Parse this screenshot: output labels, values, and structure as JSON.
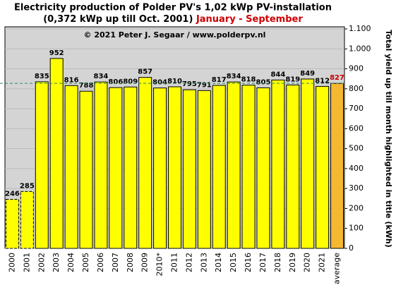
{
  "chart_data": {
    "type": "bar",
    "title": "Electricity production  of Polder PV's 1,02 kWp PV-installation",
    "title_line2": "(0,372 kWp up till Oct. 2001)",
    "title_highlight": "January - September",
    "subtitle": "© 2021 Peter J. Segaar / www.polderpv.nl",
    "y_axis_label": "Total yield up till month highlighted in title (kWh)",
    "categories": [
      "2000",
      "2001",
      "2002",
      "2003",
      "2004",
      "2005",
      "2006",
      "2007",
      "2008",
      "2009",
      "2010*",
      "2011",
      "2012",
      "2013",
      "2014",
      "2015",
      "2016",
      "2017",
      "2018",
      "2019",
      "2020",
      "2021",
      "average"
    ],
    "values": [
      246,
      285,
      835,
      952,
      816,
      788,
      834,
      806,
      809,
      857,
      804,
      810,
      795,
      791,
      817,
      834,
      818,
      805,
      844,
      819,
      849,
      812,
      827
    ],
    "colors": [
      "#ffff00",
      "#ffff00",
      "#ffff00",
      "#ffff00",
      "#ffff00",
      "#ffff00",
      "#ffff00",
      "#ffff00",
      "#ffff00",
      "#ffff00",
      "#ffff00",
      "#ffff00",
      "#ffff00",
      "#ffff00",
      "#ffff00",
      "#ffff00",
      "#ffff00",
      "#ffff00",
      "#ffff00",
      "#ffff00",
      "#ffff00",
      "#ffff00",
      "#f5b830"
    ],
    "dashed": [
      true,
      true,
      false,
      false,
      false,
      false,
      false,
      false,
      false,
      false,
      false,
      false,
      false,
      false,
      false,
      false,
      false,
      false,
      false,
      false,
      false,
      false,
      false
    ],
    "value_label_colors": [
      "#000000",
      "#000000",
      "#000000",
      "#000000",
      "#000000",
      "#000000",
      "#000000",
      "#000000",
      "#000000",
      "#000000",
      "#000000",
      "#000000",
      "#000000",
      "#000000",
      "#000000",
      "#000000",
      "#000000",
      "#000000",
      "#000000",
      "#000000",
      "#000000",
      "#000000",
      "#cc0000"
    ],
    "average_line_color": "#2e8b57",
    "ylim": [
      0,
      1100
    ],
    "yticks": [
      0,
      100,
      200,
      300,
      400,
      500,
      600,
      700,
      800,
      900,
      {
        "value": 1000,
        "label": "1.000"
      },
      {
        "value": 1100,
        "label": "1.100"
      }
    ],
    "grid": true,
    "background": "#d4d4d4"
  }
}
